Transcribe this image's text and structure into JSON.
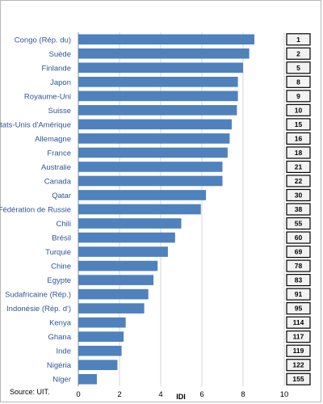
{
  "chart_data": {
    "type": "bar",
    "orientation": "horizontal",
    "xlabel": "IDI",
    "xlim": [
      0,
      10
    ],
    "xticks": [
      0,
      2,
      4,
      6,
      8,
      10
    ],
    "grid": "vertical",
    "bar_color": "#4f81bd",
    "label_color": "#2e5597",
    "categories": [
      "Congo (Rép. du)",
      "Suède",
      "Finlande",
      "Japon",
      "Royaume-Uni",
      "Suisse",
      "Etats-Unis d'Amérique",
      "Allemagne",
      "France",
      "Australie",
      "Canada",
      "Qatar",
      "Fédération de Russie",
      "Chili",
      "Brésil",
      "Turquie",
      "Chine",
      "Egypte",
      "Sudafricaine (Rép.)",
      "Indonésie (Rép. d')",
      "Kenya",
      "Ghana",
      "Inde",
      "Nigéria",
      "Niger"
    ],
    "values": [
      8.55,
      8.3,
      8.0,
      7.75,
      7.75,
      7.7,
      7.45,
      7.35,
      7.25,
      7.0,
      7.0,
      6.2,
      5.95,
      5.0,
      4.7,
      4.35,
      3.85,
      3.65,
      3.4,
      3.2,
      2.3,
      2.2,
      2.1,
      1.9,
      0.9
    ],
    "ranks": [
      "1",
      "2",
      "5",
      "8",
      "9",
      "10",
      "15",
      "16",
      "18",
      "21",
      "22",
      "30",
      "38",
      "55",
      "60",
      "69",
      "78",
      "83",
      "91",
      "95",
      "114",
      "117",
      "119",
      "122",
      "155"
    ]
  },
  "source": "Source: UIT."
}
